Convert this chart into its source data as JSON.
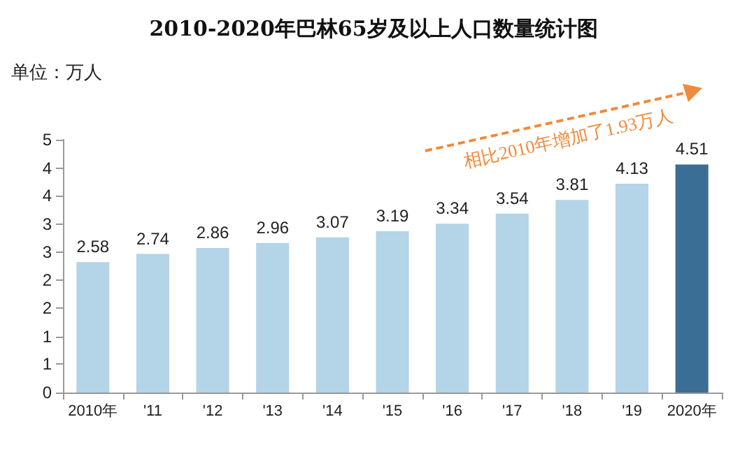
{
  "chart_data": {
    "type": "bar",
    "title": "2010-2020年巴林65岁及以上人口数量统计图",
    "ylabel": "单位：万人",
    "categories": [
      "2010年",
      "'11",
      "'12",
      "'13",
      "'14",
      "'15",
      "'16",
      "'17",
      "'18",
      "'19",
      "2020年"
    ],
    "values": [
      2.58,
      2.74,
      2.86,
      2.96,
      3.07,
      3.19,
      3.34,
      3.54,
      3.81,
      4.13,
      4.51
    ],
    "colors": [
      "#b4d4e7",
      "#b4d4e7",
      "#b4d4e7",
      "#b4d4e7",
      "#b4d4e7",
      "#b4d4e7",
      "#b4d4e7",
      "#b4d4e7",
      "#b4d4e7",
      "#b4d4e7",
      "#3a6e94"
    ],
    "ylim": [
      0,
      5
    ],
    "yticks": [
      0,
      {
        "value": 0.56,
        "label": "1"
      },
      {
        "value": 1.11,
        "label": "1"
      },
      {
        "value": 1.67,
        "label": "2"
      },
      {
        "value": 2.22,
        "label": "2"
      },
      {
        "value": 2.78,
        "label": "3"
      },
      {
        "value": 3.33,
        "label": "3"
      },
      {
        "value": 3.89,
        "label": "4"
      },
      {
        "value": 4.44,
        "label": "4"
      },
      5
    ],
    "data_labels": true,
    "annotations": [
      "相比2010年增加了1.93万人"
    ]
  }
}
